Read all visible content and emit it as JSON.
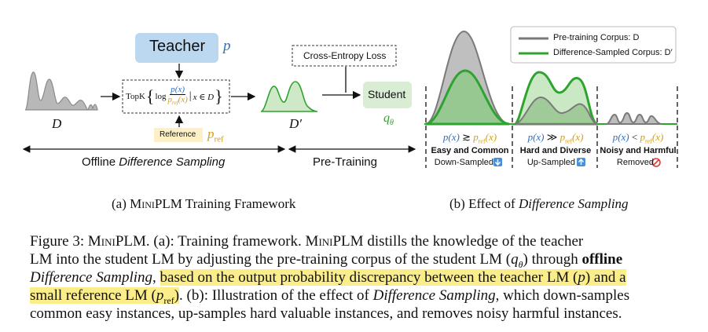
{
  "panel_a": {
    "teacher_label": "Teacher",
    "teacher_symbol": "p",
    "corpus_label": "D",
    "formula_topk": "TopK",
    "formula_log": "log",
    "formula_numerator": "p(x)",
    "formula_denominator": "p",
    "formula_denominator_sub": "ref",
    "formula_denominator_tail": "(x)",
    "formula_condition": "x ∈ D",
    "reference_label": "Reference",
    "reference_symbol": "p",
    "reference_symbol_sub": "ref",
    "sampled_corpus_label": "D′",
    "cross_entropy_label": "Cross-Entropy Loss",
    "student_label": "Student",
    "student_symbol": "q",
    "student_symbol_sub": "θ",
    "offline_prefix": "Offline ",
    "offline_italic": "Difference Sampling",
    "pretraining_label": "Pre-Training",
    "colors": {
      "teacher_box": "#bcd8f0",
      "student_box": "#d8edd3",
      "reference_box": "#fdf0c6",
      "green": "#2fa32f",
      "gold": "#d4a017",
      "blue": "#2d6fc2"
    }
  },
  "panel_b": {
    "legend": {
      "pretraining": "Pre-training Corpus: D",
      "difference": "Difference-Sampled Corpus: D′"
    },
    "regions": [
      {
        "relation_left": "p(x)",
        "relation_op": " ≳ ",
        "relation_right": "p",
        "relation_sub": "ref",
        "relation_tail": "(x)",
        "title": "Easy and Common",
        "action": "Down-Sampled",
        "icon": "down-arrow-icon"
      },
      {
        "relation_left": "p(x)",
        "relation_op": " ≫ ",
        "relation_right": "p",
        "relation_sub": "ref",
        "relation_tail": "(x)",
        "title": "Hard and Diverse",
        "action": "Up-Sampled",
        "icon": "up-arrow-icon"
      },
      {
        "relation_left": "p(x)",
        "relation_op": " < ",
        "relation_right": "p",
        "relation_sub": "ref",
        "relation_tail": "(x)",
        "title": "Noisy and Harmful",
        "action": "Removed",
        "icon": "prohibited-icon"
      }
    ]
  },
  "subcaptions": {
    "a_prefix": "(a) ",
    "a_name": "MiniPLM",
    "a_suffix": " Training Framework",
    "b_prefix": "(b) Effect of ",
    "b_italic": "Difference Sampling"
  },
  "caption": {
    "l1_a": "Figure 3: ",
    "l1_name": "MiniPLM",
    "l1_b": ". (a): Training framework. ",
    "l1_name2": "MiniPLM",
    "l1_c": " distills the knowledge of the teacher",
    "l2_a": "LM into the student LM by adjusting the pre-training corpus of the student LM (",
    "l2_q": "q",
    "l2_qsub": "θ",
    "l2_b": ") through ",
    "l2_bold": "offline",
    "l3_it": "Difference Sampling",
    "l3_a": ", ",
    "l3_hl": "based on the output probability discrepancy between the teacher LM (",
    "l3_p": "p",
    "l3_hl2": ") and a",
    "l4_hl": "small reference LM (",
    "l4_p": "p",
    "l4_psub": "ref",
    "l4_hl2": ")",
    "l4_a": ". (b): Illustration of the effect of ",
    "l4_it": "Difference Sampling",
    "l4_b": ", which down-samples",
    "l5": "common easy instances, up-samples hard valuable instances, and removes noisy harmful instances."
  }
}
